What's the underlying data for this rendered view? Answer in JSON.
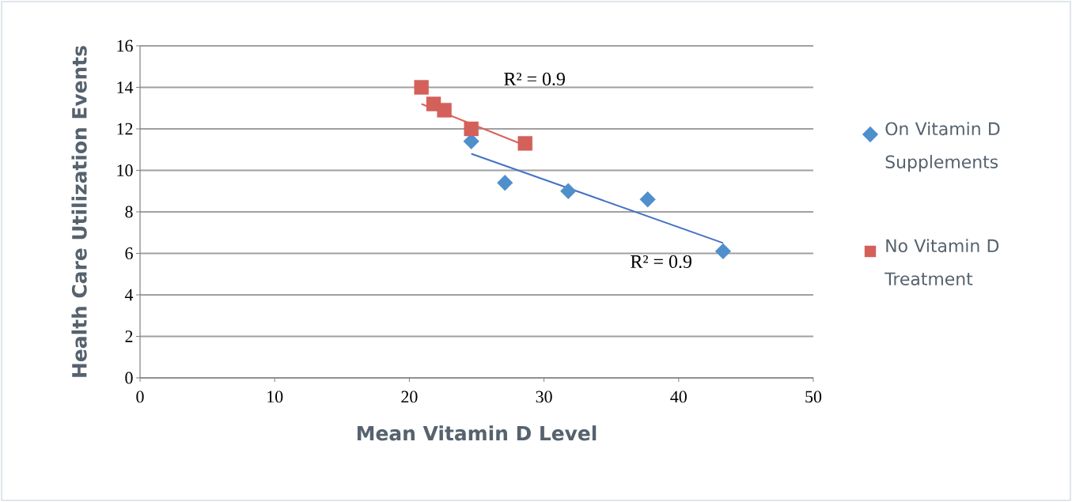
{
  "chart_data": {
    "type": "scatter",
    "xlabel": "Mean Vitamin D Level",
    "ylabel": "Health Care Utilization Events",
    "xlim": [
      0,
      50
    ],
    "xticks": [
      0,
      10,
      20,
      30,
      40,
      50
    ],
    "ylim": [
      0,
      16
    ],
    "yticks": [
      0,
      2,
      4,
      6,
      8,
      10,
      12,
      14,
      16
    ],
    "grid": "y",
    "legend": "right",
    "series": [
      {
        "name": "On Vitamin D Supplements",
        "color": "#4f8fcc",
        "marker": "diamond",
        "x": [
          24.6,
          27.1,
          31.8,
          37.7,
          43.3
        ],
        "values": [
          11.4,
          9.4,
          9.0,
          8.6,
          6.1
        ]
      },
      {
        "name": "No Vitamin D Treatment",
        "color": "#d4605a",
        "marker": "square",
        "x": [
          20.9,
          21.8,
          22.6,
          24.6,
          28.6
        ],
        "values": [
          14.0,
          13.2,
          12.9,
          12.0,
          11.3
        ]
      },
      {
        "type": "line",
        "color": "#4472c4",
        "marker": "none",
        "x": [
          24.6,
          43.3
        ],
        "values": [
          10.8,
          6.5
        ]
      },
      {
        "type": "line",
        "color": "#d9645a",
        "marker": "none",
        "x": [
          20.9,
          28.6
        ],
        "values": [
          13.2,
          11.2
        ]
      }
    ],
    "annotations": [
      "R² = 0.9",
      "R² = 0.9"
    ]
  }
}
